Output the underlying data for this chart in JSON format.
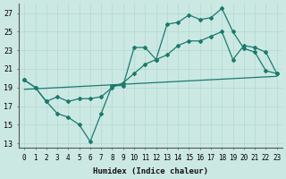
{
  "xlabel": "Humidex (Indice chaleur)",
  "bg_color": "#cce8e3",
  "grid_color": "#b8ddd8",
  "line_color": "#1a7a6e",
  "xlim": [
    -0.5,
    23.5
  ],
  "ylim": [
    12.5,
    28
  ],
  "xtick_vals": [
    0,
    1,
    2,
    3,
    4,
    5,
    6,
    7,
    8,
    9,
    10,
    11,
    12,
    13,
    14,
    15,
    16,
    17,
    18,
    19,
    20,
    21,
    22,
    23
  ],
  "ytick_vals": [
    13,
    15,
    17,
    19,
    21,
    23,
    25,
    27
  ],
  "curve_jagged_x": [
    0,
    1,
    2,
    3,
    4,
    5,
    6,
    7,
    8,
    9,
    10,
    11,
    12,
    13,
    14,
    15,
    16,
    17,
    18,
    19,
    20,
    21,
    22,
    23
  ],
  "curve_jagged_y": [
    19.8,
    19.0,
    17.5,
    16.2,
    15.8,
    15.0,
    13.2,
    16.2,
    19.2,
    19.2,
    23.3,
    23.3,
    22.0,
    25.8,
    26.0,
    26.8,
    26.3,
    26.5,
    27.5,
    25.0,
    23.2,
    22.8,
    20.8,
    20.5
  ],
  "curve_smooth_x": [
    0,
    1,
    2,
    3,
    4,
    5,
    6,
    7,
    8,
    9,
    10,
    11,
    12,
    13,
    14,
    15,
    16,
    17,
    18,
    19,
    20,
    21,
    22,
    23
  ],
  "curve_smooth_y": [
    19.8,
    19.0,
    17.5,
    18.0,
    17.5,
    17.8,
    17.8,
    18.0,
    19.0,
    19.5,
    20.5,
    21.5,
    22.0,
    22.5,
    23.5,
    24.0,
    24.0,
    24.5,
    25.0,
    22.0,
    23.5,
    23.3,
    22.8,
    20.5
  ],
  "trend_x": [
    0,
    23
  ],
  "trend_y": [
    18.8,
    20.2
  ]
}
